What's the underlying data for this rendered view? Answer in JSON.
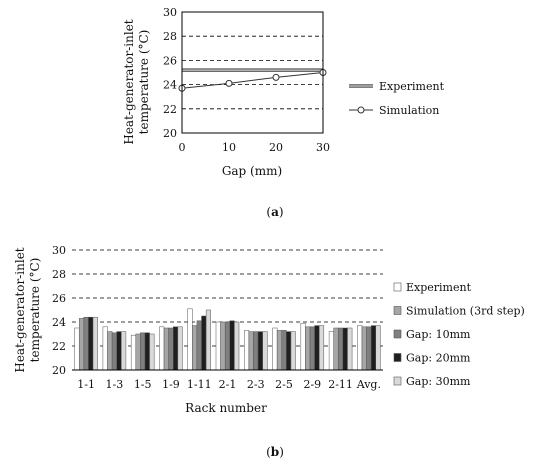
{
  "figure_a": {
    "caption_prefix": "(",
    "caption_letter": "a",
    "caption_suffix": ")",
    "ylabel_line1": "Heat-generator-inlet",
    "ylabel_line2": "temperature (°C)",
    "xlabel": "Gap (mm)",
    "legend": [
      "Experiment",
      "Simulation"
    ],
    "colors": {
      "experiment": "#555555",
      "simulation_fill": "#ffffff",
      "line": "#333333"
    }
  },
  "figure_b": {
    "caption_prefix": "(",
    "caption_letter": "b",
    "caption_suffix": ")",
    "ylabel_line1": "Heat-generator-inlet",
    "ylabel_line2": "temperature (°C)",
    "xlabel": "Rack number",
    "legend": [
      "Experiment",
      "Simulation (3rd step)",
      "Gap: 10mm",
      "Gap: 20mm",
      "Gap: 30mm"
    ],
    "colors": [
      "#ffffff",
      "#a6a6a6",
      "#7f7f7f",
      "#1f1f1f",
      "#d9d9d9"
    ]
  },
  "chart_data": [
    {
      "type": "line",
      "x": [
        0,
        10,
        20,
        30
      ],
      "xticks": [
        "0",
        "10",
        "20",
        "30"
      ],
      "xlim": [
        0,
        30
      ],
      "ylim": [
        20,
        30
      ],
      "yticks": [
        "20",
        "22",
        "24",
        "26",
        "28",
        "30"
      ],
      "series": [
        {
          "name": "Experiment",
          "values": [
            25.2,
            25.2,
            25.2,
            25.2
          ]
        },
        {
          "name": "Simulation",
          "values": [
            23.7,
            24.1,
            24.6,
            25.0
          ]
        }
      ],
      "xlabel": "Gap (mm)",
      "ylabel": "Heat-generator-inlet temperature (°C)",
      "grid": "dashed horizontal",
      "legend_position": "right"
    },
    {
      "type": "bar",
      "categories": [
        "1-1",
        "1-3",
        "1-5",
        "1-9",
        "1-11",
        "2-1",
        "2-3",
        "2-5",
        "2-9",
        "2-11",
        "Avg."
      ],
      "ylim": [
        20,
        30
      ],
      "yticks": [
        "20",
        "22",
        "24",
        "26",
        "28",
        "30"
      ],
      "series": [
        {
          "name": "Experiment",
          "values": [
            23.5,
            23.6,
            22.9,
            23.6,
            25.1,
            24.0,
            23.3,
            23.5,
            23.9,
            23.2,
            23.7
          ]
        },
        {
          "name": "Simulation (3rd step)",
          "values": [
            24.3,
            23.2,
            23.0,
            23.5,
            23.7,
            24.0,
            23.2,
            23.3,
            23.6,
            23.5,
            23.6
          ]
        },
        {
          "name": "Gap: 10mm",
          "values": [
            24.4,
            23.1,
            23.1,
            23.5,
            24.1,
            24.0,
            23.2,
            23.3,
            23.6,
            23.5,
            23.6
          ]
        },
        {
          "name": "Gap: 20mm",
          "values": [
            24.4,
            23.2,
            23.1,
            23.6,
            24.5,
            24.1,
            23.2,
            23.2,
            23.7,
            23.5,
            23.7
          ]
        },
        {
          "name": "Gap: 30mm",
          "values": [
            24.4,
            23.2,
            23.0,
            23.6,
            25.0,
            24.0,
            23.2,
            23.2,
            23.7,
            23.5,
            23.7
          ]
        }
      ],
      "xlabel": "Rack number",
      "ylabel": "Heat-generator-inlet temperature (°C)",
      "grid": "dashed horizontal",
      "legend_position": "right"
    }
  ]
}
